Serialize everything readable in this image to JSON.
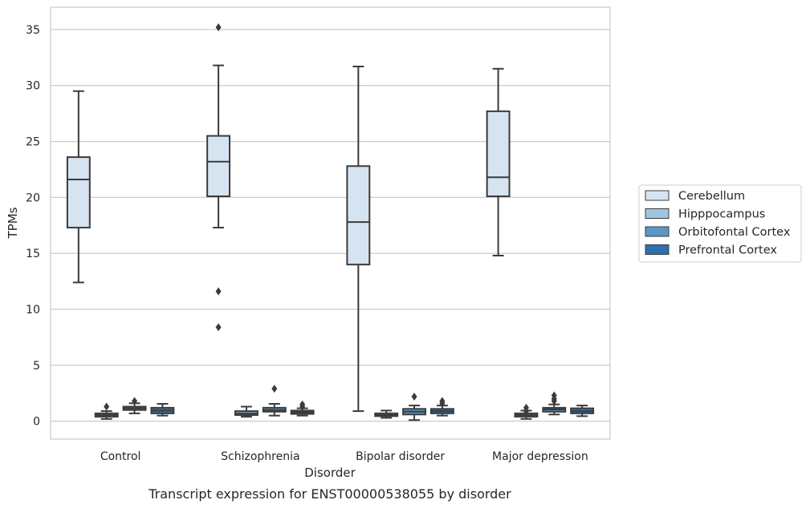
{
  "chart_data": {
    "type": "box",
    "title": "",
    "caption": "Transcript expression for ENST00000538055 by disorder",
    "xlabel": "Disorder",
    "ylabel": "TPMs",
    "ylim": [
      -1.6,
      37
    ],
    "yticks": [
      0,
      5,
      10,
      15,
      20,
      25,
      30,
      35
    ],
    "grid": true,
    "legend_position": "right",
    "categories": [
      "Control",
      "Schizophrenia",
      "Bipolar disorder",
      "Major depression"
    ],
    "series": [
      {
        "name": "Cerebellum",
        "color": "#d6e4f2",
        "boxes": [
          {
            "whislo": 12.4,
            "q1": 17.3,
            "med": 21.6,
            "q3": 23.6,
            "whishi": 29.5,
            "fliers": []
          },
          {
            "whislo": 17.3,
            "q1": 20.1,
            "med": 23.2,
            "q3": 25.5,
            "whishi": 31.8,
            "fliers": [
              35.2,
              11.6,
              8.4
            ]
          },
          {
            "whislo": 0.9,
            "q1": 14.0,
            "med": 17.8,
            "q3": 22.8,
            "whishi": 31.7,
            "fliers": []
          },
          {
            "whislo": 14.8,
            "q1": 20.1,
            "med": 21.8,
            "q3": 27.7,
            "whishi": 31.5,
            "fliers": []
          }
        ]
      },
      {
        "name": "Hipppocampus",
        "color": "#9dc4e0",
        "boxes": [
          {
            "whislo": 0.2,
            "q1": 0.4,
            "med": 0.55,
            "q3": 0.7,
            "whishi": 0.9,
            "fliers": [
              1.3
            ]
          },
          {
            "whislo": 0.4,
            "q1": 0.55,
            "med": 0.7,
            "q3": 0.9,
            "whishi": 1.3,
            "fliers": []
          },
          {
            "whislo": 0.3,
            "q1": 0.45,
            "med": 0.55,
            "q3": 0.7,
            "whishi": 0.95,
            "fliers": []
          },
          {
            "whislo": 0.2,
            "q1": 0.4,
            "med": 0.55,
            "q3": 0.7,
            "whishi": 0.95,
            "fliers": [
              1.2,
              0.9
            ]
          }
        ]
      },
      {
        "name": "Orbitofontal Cortex",
        "color": "#5b97c6",
        "boxes": [
          {
            "whislo": 0.7,
            "q1": 1.0,
            "med": 1.15,
            "q3": 1.3,
            "whishi": 1.6,
            "fliers": [
              1.8
            ]
          },
          {
            "whislo": 0.5,
            "q1": 0.85,
            "med": 1.0,
            "q3": 1.2,
            "whishi": 1.55,
            "fliers": [
              2.9
            ]
          },
          {
            "whislo": 0.1,
            "q1": 0.6,
            "med": 0.85,
            "q3": 1.1,
            "whishi": 1.4,
            "fliers": [
              2.2
            ]
          },
          {
            "whislo": 0.6,
            "q1": 0.85,
            "med": 1.05,
            "q3": 1.2,
            "whishi": 1.5,
            "fliers": [
              2.3,
              2.0,
              1.8
            ]
          }
        ]
      },
      {
        "name": "Prefrontal Cortex",
        "color": "#2e6fb0",
        "boxes": [
          {
            "whislo": 0.5,
            "q1": 0.7,
            "med": 0.95,
            "q3": 1.2,
            "whishi": 1.55,
            "fliers": []
          },
          {
            "whislo": 0.5,
            "q1": 0.65,
            "med": 0.8,
            "q3": 0.95,
            "whishi": 1.15,
            "fliers": [
              1.5,
              1.3
            ]
          },
          {
            "whislo": 0.5,
            "q1": 0.7,
            "med": 0.9,
            "q3": 1.1,
            "whishi": 1.4,
            "fliers": [
              1.8,
              1.6
            ]
          },
          {
            "whislo": 0.45,
            "q1": 0.7,
            "med": 0.9,
            "q3": 1.15,
            "whishi": 1.4,
            "fliers": []
          }
        ]
      }
    ]
  }
}
